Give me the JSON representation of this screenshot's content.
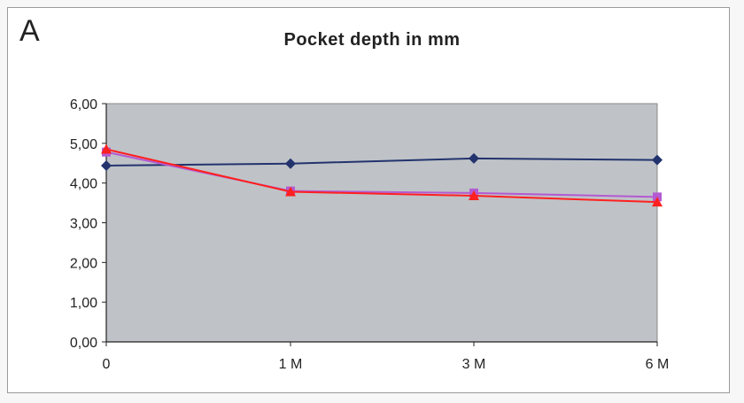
{
  "panel_label": "A",
  "chart_data": {
    "type": "line",
    "title": "Pocket depth in mm",
    "xlabel": "",
    "ylabel": "",
    "categories": [
      "0",
      "1 M",
      "3 M",
      "6 M"
    ],
    "ylim": [
      0,
      6
    ],
    "yticks": [
      "0,00",
      "1,00",
      "2,00",
      "3,00",
      "4,00",
      "5,00",
      "6,00"
    ],
    "grid": false,
    "legend": "none",
    "plot_background": "#bfc3c7",
    "series": [
      {
        "color": "#23336e",
        "marker": "diamond",
        "values": [
          4.44,
          4.49,
          4.62,
          4.58
        ]
      },
      {
        "color": "#b45ad2",
        "marker": "square",
        "values": [
          4.78,
          3.8,
          3.75,
          3.65
        ]
      },
      {
        "color": "#ff2020",
        "marker": "triangle",
        "values": [
          4.85,
          3.78,
          3.68,
          3.52
        ]
      }
    ]
  }
}
